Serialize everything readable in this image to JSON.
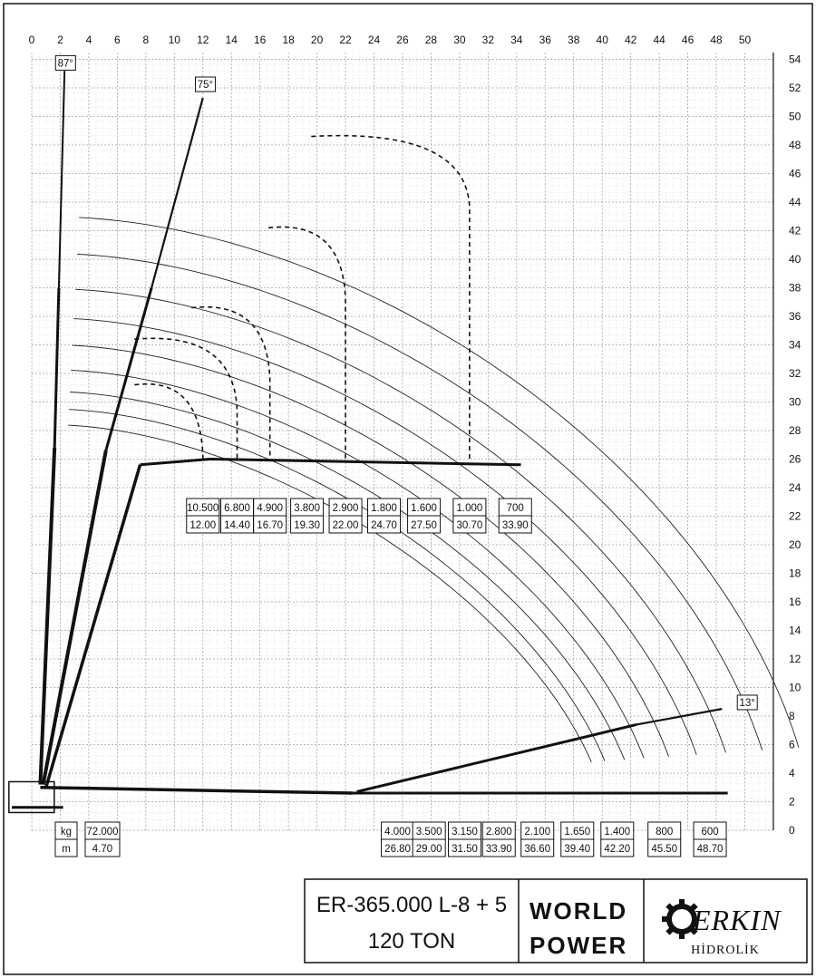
{
  "chart_data": {
    "type": "load-chart",
    "x_ticks": [
      "0",
      "2",
      "4",
      "6",
      "8",
      "10",
      "12",
      "14",
      "16",
      "18",
      "20",
      "22",
      "24",
      "26",
      "28",
      "30",
      "32",
      "34",
      "36",
      "38",
      "40",
      "42",
      "44",
      "46",
      "48",
      "50"
    ],
    "y_ticks": [
      "54",
      "52",
      "50",
      "48",
      "46",
      "44",
      "42",
      "40",
      "38",
      "36",
      "34",
      "32",
      "30",
      "28",
      "26",
      "24",
      "22",
      "20",
      "18",
      "16",
      "14",
      "12",
      "10",
      "8",
      "6",
      "4",
      "2",
      "0"
    ],
    "xlim": [
      0,
      52
    ],
    "ylim": [
      0,
      54
    ],
    "grid": true,
    "angle_labels": [
      "87°",
      "75°",
      "13°"
    ],
    "upper_table": {
      "kg": [
        "10.500",
        "6.800",
        "4.900",
        "3.800",
        "2.900",
        "1.800",
        "1.600",
        "1.000",
        "700"
      ],
      "m": [
        "12.00",
        "14.40",
        "16.70",
        "19.30",
        "22.00",
        "24.70",
        "27.50",
        "30.70",
        "33.90"
      ]
    },
    "lower_table": {
      "row_labels": [
        "kg",
        "m"
      ],
      "base": {
        "kg": "72.000",
        "m": "4.70"
      },
      "kg": [
        "4.000",
        "3.500",
        "3.150",
        "2.800",
        "2.100",
        "1.650",
        "1.400",
        "800",
        "600"
      ],
      "m": [
        "26.80",
        "29.00",
        "31.50",
        "33.90",
        "36.60",
        "39.40",
        "42.20",
        "45.50",
        "48.70"
      ]
    }
  },
  "title_block": {
    "model": "ER-365.000  L-8 + 5",
    "capacity": "120 TON",
    "world_power_line1": "WORLD",
    "world_power_line2": "POWER",
    "brand": "ERKIN",
    "brand_sub": "HİDROLİK"
  },
  "colors": {
    "line": "#111111",
    "grid": "#9a9a9a",
    "background": "#ffffff"
  }
}
